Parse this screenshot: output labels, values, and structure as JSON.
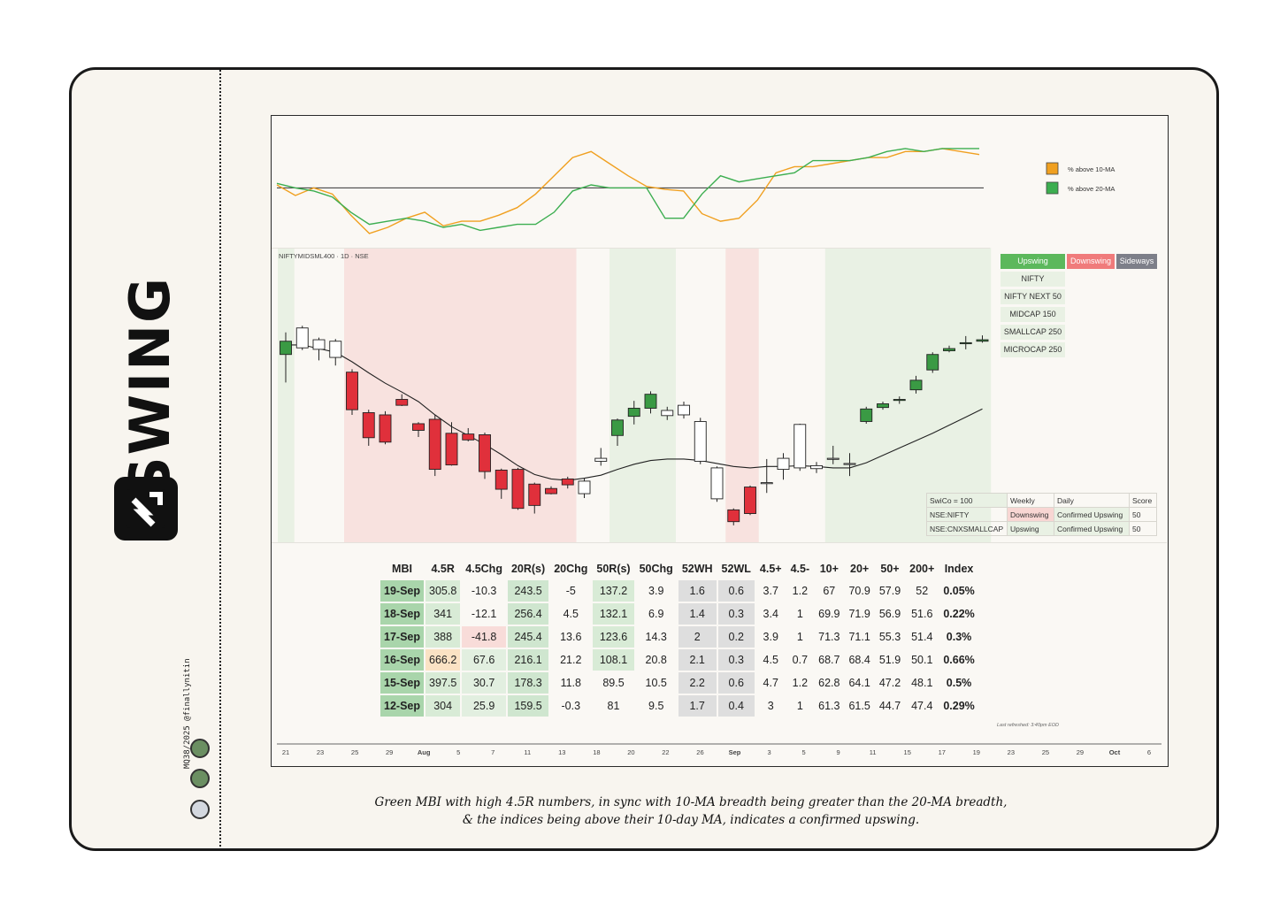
{
  "brand": {
    "name": "SWING",
    "credit": "MQ38/2025 @finallynitin"
  },
  "colors": {
    "upswing_bg": "#e9f1e4",
    "downswing_bg": "#f8e2df",
    "up_candle": "#3a9a44",
    "down_candle": "#e0303b",
    "ma10": "#f0a020",
    "ma20": "#3cae50",
    "dot_green": "#6b8f62",
    "dot_gray": "#d4d8df"
  },
  "breadth_legend": [
    {
      "label": "% above 10-MA",
      "color": "#f0a020"
    },
    {
      "label": "% above 20-MA",
      "color": "#3cae50"
    }
  ],
  "chart_title": "NIFTYMIDSML400 · 1D · NSE",
  "chart_data": [
    {
      "type": "line",
      "title": "% above MA breadth",
      "series": [
        {
          "name": "% above 10-MA",
          "values": [
            62,
            55,
            60,
            56,
            42,
            30,
            34,
            40,
            44,
            35,
            38,
            38,
            42,
            47,
            56,
            68,
            80,
            84,
            76,
            68,
            61,
            59,
            58,
            43,
            38,
            40,
            52,
            70,
            74,
            74,
            76,
            78,
            80,
            80,
            84,
            84,
            86,
            84,
            82
          ]
        },
        {
          "name": "% above 20-MA",
          "values": [
            63,
            60,
            58,
            54,
            44,
            36,
            38,
            40,
            38,
            34,
            36,
            32,
            34,
            36,
            36,
            44,
            58,
            62,
            60,
            60,
            60,
            40,
            40,
            56,
            68,
            64,
            66,
            68,
            70,
            78,
            78,
            78,
            80,
            84,
            86,
            84,
            86,
            86,
            86
          ]
        }
      ],
      "ylim": [
        20,
        90
      ],
      "reference_line": 60
    },
    {
      "type": "candlestick",
      "title": "NIFTYMIDSML400 · 1D · NSE",
      "series": [
        {
          "name": "ohlc",
          "values": [
            [
              60.5,
              62.3,
              56.7,
              63.5
            ],
            [
              61.4,
              64.1,
              61.1,
              64.4
            ],
            [
              62.5,
              61.2,
              59.7,
              62.8
            ],
            [
              62.3,
              60.1,
              59.0,
              62.6
            ],
            [
              58.1,
              53.0,
              52.3,
              58.5
            ],
            [
              52.6,
              49.2,
              48.1,
              53.0
            ],
            [
              52.3,
              48.6,
              48.3,
              52.8
            ],
            [
              54.4,
              53.6,
              53.5,
              55.1
            ],
            [
              51.1,
              50.2,
              49.3,
              51.3
            ],
            [
              51.7,
              44.9,
              44.0,
              52.3
            ],
            [
              49.8,
              45.5,
              45.4,
              51.3
            ],
            [
              49.7,
              48.9,
              48.7,
              50.5
            ],
            [
              49.6,
              44.6,
              43.6,
              49.9
            ],
            [
              44.8,
              42.2,
              40.9,
              45.0
            ],
            [
              44.9,
              39.6,
              39.4,
              45.1
            ],
            [
              42.9,
              40.0,
              38.9,
              43.1
            ],
            [
              42.3,
              41.6,
              41.5,
              42.6
            ],
            [
              43.6,
              42.8,
              42.3,
              43.9
            ],
            [
              43.3,
              41.6,
              41.0,
              43.7
            ],
            [
              46.0,
              46.4,
              45.4,
              47.8
            ],
            [
              49.5,
              51.6,
              48.1,
              51.8
            ],
            [
              52.1,
              53.2,
              51.0,
              54.2
            ],
            [
              53.2,
              55.1,
              52.5,
              55.5
            ],
            [
              52.9,
              52.2,
              51.6,
              53.4
            ],
            [
              52.3,
              53.6,
              51.8,
              54.1
            ],
            [
              51.4,
              46.0,
              45.6,
              51.9
            ],
            [
              45.1,
              40.9,
              40.5,
              45.3
            ],
            [
              39.4,
              37.8,
              37.3,
              39.6
            ],
            [
              38.9,
              42.5,
              38.7,
              42.7
            ],
            [
              43.0,
              43.1,
              41.7,
              46.3
            ],
            [
              44.9,
              46.4,
              43.5,
              47.1
            ],
            [
              45.1,
              51.0,
              44.7,
              51.1
            ],
            [
              45.4,
              45.0,
              44.4,
              45.9
            ],
            [
              46.4,
              46.3,
              45.6,
              48.1
            ],
            [
              45.7,
              45.7,
              44.0,
              47.1
            ],
            [
              51.4,
              53.1,
              51.1,
              53.4
            ],
            [
              53.3,
              53.8,
              53.0,
              54.1
            ],
            [
              54.4,
              54.4,
              53.8,
              54.8
            ],
            [
              55.7,
              57.0,
              55.2,
              57.6
            ],
            [
              58.4,
              60.5,
              58.0,
              60.8
            ],
            [
              61.0,
              61.3,
              60.8,
              61.7
            ],
            [
              62.1,
              62.1,
              61.2,
              63.0
            ],
            [
              62.3,
              62.5,
              62.1,
              63.1
            ]
          ]
        },
        {
          "name": "10-day MA",
          "values": [
            61.8,
            61.8,
            61.3,
            60.8,
            59.5,
            58.0,
            56.6,
            55.4,
            54.1,
            52.3,
            50.7,
            49.5,
            48.3,
            46.9,
            45.4,
            44.2,
            43.6,
            43.4,
            43.7,
            44.1,
            44.9,
            45.6,
            46.1,
            46.3,
            46.3,
            46.1,
            45.7,
            45.3,
            45.1,
            45.3,
            45.3,
            45.4,
            45.3,
            45.1,
            45.1,
            45.8,
            46.8,
            47.8,
            48.8,
            49.8,
            50.9,
            52.0,
            53.1
          ]
        }
      ],
      "ylim": [
        35,
        75
      ],
      "regimes": [
        {
          "from": 0,
          "to": 0,
          "state": "upswing"
        },
        {
          "from": 4,
          "to": 17,
          "state": "downswing"
        },
        {
          "from": 20,
          "to": 23,
          "state": "upswing"
        },
        {
          "from": 27,
          "to": 28,
          "state": "downswing"
        },
        {
          "from": 33,
          "to": 42,
          "state": "upswing"
        }
      ],
      "x_ticks": [
        "21",
        "23",
        "25",
        "29",
        "Aug",
        "5",
        "7",
        "11",
        "13",
        "18",
        "20",
        "22",
        "26",
        "Sep",
        "3",
        "5",
        "9",
        "11",
        "15",
        "17",
        "19",
        "23",
        "25",
        "29",
        "Oct",
        "6"
      ]
    }
  ],
  "status_legend": {
    "upswing": "Upswing",
    "downswing": "Downswing",
    "sideways": "Sideways"
  },
  "index_list": [
    "NIFTY",
    "NIFTY NEXT 50",
    "MIDCAP 150",
    "SMALLCAP 250",
    "MICROCAP 250"
  ],
  "swico": {
    "headers": [
      "SwiCo = 100",
      "Weekly",
      "Daily",
      "Score"
    ],
    "rows": [
      {
        "name": "NSE:NIFTY",
        "weekly": "Downswing",
        "daily": "Confirmed Upswing",
        "score": "50"
      },
      {
        "name": "NSE:CNXSMALLCAP",
        "weekly": "Upswing",
        "daily": "Confirmed Upswing",
        "score": "50"
      }
    ]
  },
  "mbi_table": {
    "headers": [
      "MBI",
      "4.5R",
      "4.5Chg",
      "20R(s)",
      "20Chg",
      "50R(s)",
      "50Chg",
      "52WH",
      "52WL",
      "4.5+",
      "4.5-",
      "10+",
      "20+",
      "50+",
      "200+",
      "Index"
    ],
    "rows": [
      [
        "19-Sep",
        "305.8",
        "-10.3",
        "243.5",
        "-5",
        "137.2",
        "3.9",
        "1.6",
        "0.6",
        "3.7",
        "1.2",
        "67",
        "70.9",
        "57.9",
        "52",
        "0.05%"
      ],
      [
        "18-Sep",
        "341",
        "-12.1",
        "256.4",
        "4.5",
        "132.1",
        "6.9",
        "1.4",
        "0.3",
        "3.4",
        "1",
        "69.9",
        "71.9",
        "56.9",
        "51.6",
        "0.22%"
      ],
      [
        "17-Sep",
        "388",
        "-41.8",
        "245.4",
        "13.6",
        "123.6",
        "14.3",
        "2",
        "0.2",
        "3.9",
        "1",
        "71.3",
        "71.1",
        "55.3",
        "51.4",
        "0.3%"
      ],
      [
        "16-Sep",
        "666.2",
        "67.6",
        "216.1",
        "21.2",
        "108.1",
        "20.8",
        "2.1",
        "0.3",
        "4.5",
        "0.7",
        "68.7",
        "68.4",
        "51.9",
        "50.1",
        "0.66%"
      ],
      [
        "15-Sep",
        "397.5",
        "30.7",
        "178.3",
        "11.8",
        "89.5",
        "10.5",
        "2.2",
        "0.6",
        "4.7",
        "1.2",
        "62.8",
        "64.1",
        "47.2",
        "48.1",
        "0.5%"
      ],
      [
        "12-Sep",
        "304",
        "25.9",
        "159.5",
        "-0.3",
        "81",
        "9.5",
        "1.7",
        "0.4",
        "3",
        "1",
        "61.3",
        "61.5",
        "44.7",
        "47.4",
        "0.29%"
      ]
    ],
    "note": "Last refreshed: 3:40pm EOD"
  },
  "caption": {
    "line1": "Green MBI with high 4.5R numbers, in sync with 10-MA breadth being greater than the 20-MA breadth,",
    "line2": "& the indices being above their 10-day MA, indicates a confirmed upswing."
  }
}
